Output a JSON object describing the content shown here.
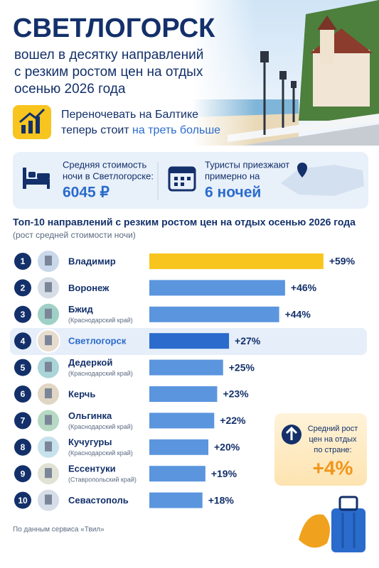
{
  "header": {
    "title": "СВЕТЛОГОРСК",
    "subtitle_lines": [
      "вошел в десятку направлений",
      "с резким ростом цен на отдых",
      "осенью 2026 года"
    ],
    "note_line1": "Переночевать на Балтике",
    "note_line2_start": "теперь стоит ",
    "note_line2_accent": "на треть больше"
  },
  "info": {
    "cost_label_lines": [
      "Средняя стоимость",
      "ночи в Светлогорске:"
    ],
    "cost_value": "6045 ₽",
    "stay_label_lines": [
      "Туристы приезжают",
      "примерно на"
    ],
    "stay_value": "6 ночей"
  },
  "chart_data": {
    "type": "bar",
    "orientation": "horizontal",
    "title": "Топ-10 направлений с резким ростом цен на отдых осенью 2026 года",
    "subtitle": "(рост средней стоимости ночи)",
    "ranks": [
      1,
      2,
      3,
      4,
      5,
      6,
      7,
      8,
      9,
      10
    ],
    "categories": [
      "Владимир",
      "Воронеж",
      "Бжид",
      "Светлогорск",
      "Дедеркой",
      "Керчь",
      "Ольгинка",
      "Кучугуры",
      "Ессентуки",
      "Севастополь"
    ],
    "regions": [
      null,
      null,
      "(Краснодарский край)",
      null,
      "(Краснодарский край)",
      null,
      "(Краснодарский край)",
      "(Краснодарский край)",
      "(Ставропольский край)",
      null
    ],
    "values": [
      59,
      46,
      44,
      27,
      25,
      23,
      22,
      20,
      19,
      18
    ],
    "value_labels": [
      "+59%",
      "+46%",
      "+44%",
      "+27%",
      "+25%",
      "+23%",
      "+22%",
      "+20%",
      "+19%",
      "+18%"
    ],
    "colors": [
      "#f8c51e",
      "#5b95de",
      "#5b95de",
      "#2a6bcc",
      "#5b95de",
      "#5b95de",
      "#5b95de",
      "#5b95de",
      "#5b95de",
      "#5b95de"
    ],
    "xlim": [
      0,
      60
    ]
  },
  "national": {
    "label_lines": [
      "Средний рост",
      "цен на отдых",
      "по стране:"
    ],
    "value": "+4%"
  },
  "footer": "По данным сервиса «Твил»"
}
